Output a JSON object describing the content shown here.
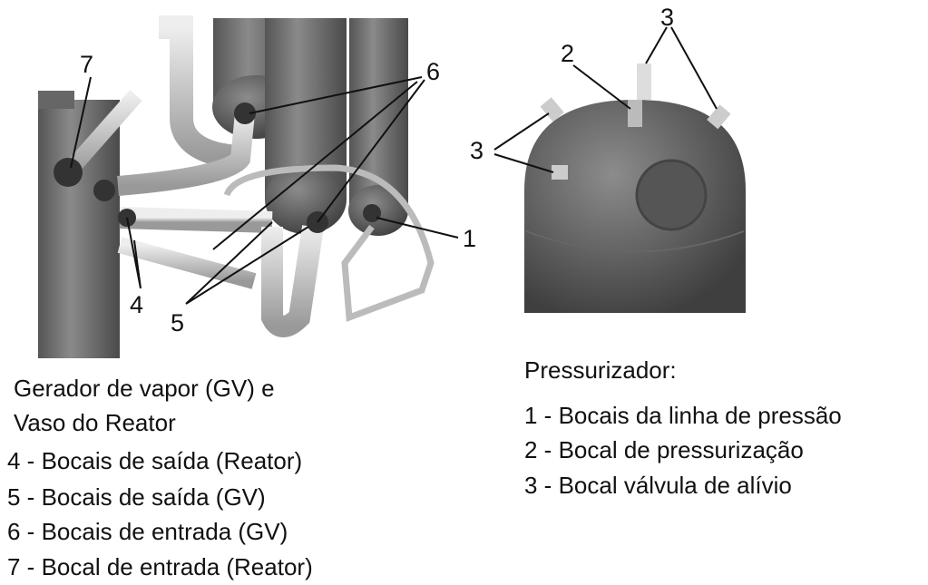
{
  "callouts": [
    "7",
    "6",
    "1",
    "4",
    "5",
    "3",
    "2",
    "3"
  ],
  "left_caption": {
    "line1": "Gerador de vapor (GV) e",
    "line2": "Vaso do Reator",
    "items": [
      "4 - Bocais de saída (Reator)",
      "5 - Bocais  de saída (GV)",
      "6 - Bocais de entrada (GV)",
      "7 - Bocal de entrada (Reator)"
    ]
  },
  "right_caption": {
    "title": "Pressurizador:",
    "items": [
      "1 - Bocais da linha de pressão",
      "2 - Bocal de pressurização",
      "3 - Bocal válvula de alívio"
    ]
  }
}
